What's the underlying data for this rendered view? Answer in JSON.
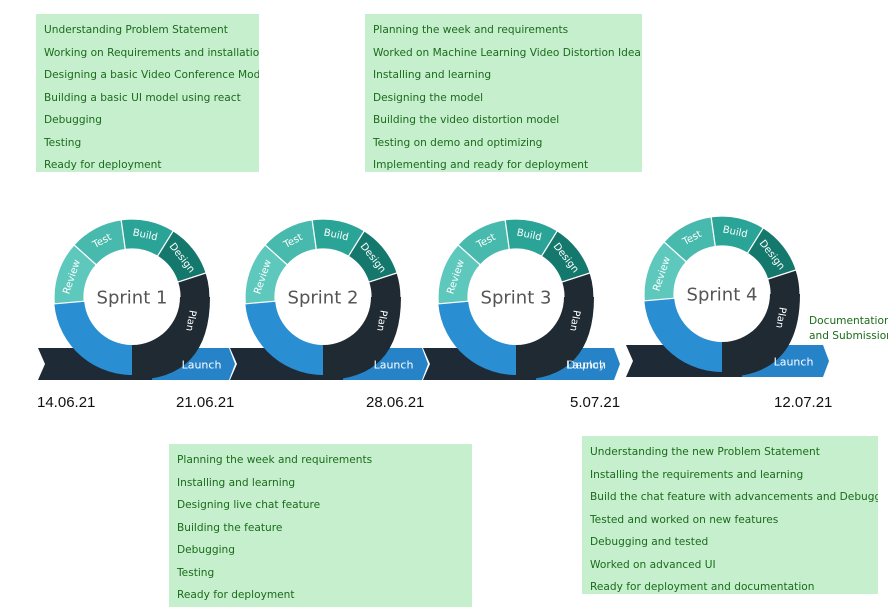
{
  "sprints": [
    {
      "title": "Sprint 1",
      "segments": [
        "Review",
        "Test",
        "Build",
        "Design",
        "Plan"
      ],
      "launch": "Launch"
    },
    {
      "title": "Sprint 2",
      "segments": [
        "Review",
        "Test",
        "Build",
        "Design",
        "Plan"
      ],
      "launch": "Launch"
    },
    {
      "title": "Sprint 3",
      "segments": [
        "Review",
        "Test",
        "Build",
        "Design",
        "Plan"
      ],
      "launch": "Launch"
    },
    {
      "title": "Sprint 4",
      "segments": [
        "Review",
        "Test",
        "Build",
        "Design",
        "Plan"
      ],
      "launch": "Launch"
    }
  ],
  "sprint3_overlay_label": "Deploy",
  "dates": [
    "14.06.21",
    "21.06.21",
    "28.06.21",
    "5.07.21",
    "12.07.21"
  ],
  "notes": [
    [
      "Understanding Problem Statement",
      "Working on Requirements and installation",
      "Designing a basic Video Conference Model",
      "Building a basic UI model using react",
      "Debugging",
      "Testing",
      "Ready for deployment"
    ],
    [
      "Planning the week and requirements",
      "Worked on Machine Learning Video Distortion Idea",
      "Installing and learning",
      "Designing the model",
      "Building the video distortion model",
      "Testing on demo and optimizing",
      "Implementing and ready for deployment"
    ],
    [
      "Planning the week and requirements",
      "Installing and learning",
      "Designing live chat feature",
      "Building the feature",
      "Debugging",
      "Testing",
      "Ready for deployment"
    ],
    [
      "Understanding the new Problem Statement",
      "Installing the requirements and learning",
      "Build the chat feature with advancements and Debugged",
      "Tested and worked on new features",
      "Debugging and tested",
      "Worked on advanced UI",
      "Ready for deployment and documentation"
    ]
  ],
  "final_note": [
    "Documentation",
    "and Submission"
  ],
  "colors": {
    "note_bg": "#c6efce",
    "note_text": "#1a6b1a",
    "review": "#5ec8bd",
    "test": "#47b9ad",
    "build": "#2aa496",
    "design": "#15786d",
    "plan": "#1f2a33",
    "lower_blue": "#2a8ed3",
    "launch_bar": "#2783c8",
    "dark_bar": "#1e2a35"
  }
}
